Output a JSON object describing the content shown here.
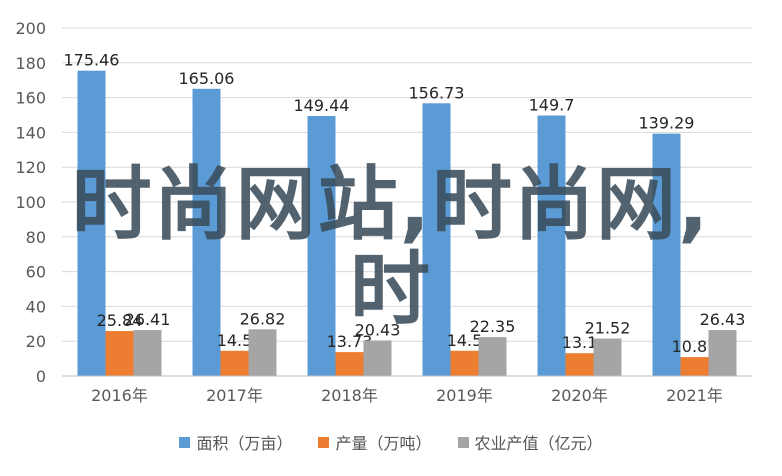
{
  "chart_data": {
    "type": "bar",
    "categories": [
      "2016年",
      "2017年",
      "2018年",
      "2019年",
      "2020年",
      "2021年"
    ],
    "ylim": [
      0,
      200
    ],
    "yticks": [
      0,
      20,
      40,
      60,
      80,
      100,
      120,
      140,
      160,
      180,
      200
    ],
    "grid": true,
    "legend_position": "bottom",
    "series": [
      {
        "name": "面积（万亩）",
        "color": "#5b9bd5",
        "values": [
          175.46,
          165.06,
          149.44,
          156.73,
          149.7,
          139.29
        ],
        "labels": [
          "175.46",
          "165.06",
          "149.44",
          "156.73",
          "149.7",
          "139.29"
        ]
      },
      {
        "name": "产量（万吨）",
        "color": "#ed7d31",
        "values": [
          25.84,
          14.5,
          13.73,
          14.5,
          13.1,
          10.87
        ],
        "labels": [
          "25.84",
          "14.5",
          "13.73",
          "14.5",
          "13.1",
          "10.87"
        ]
      },
      {
        "name": "农业产值（亿元）",
        "color": "#a5a5a5",
        "values": [
          26.41,
          26.82,
          20.43,
          22.35,
          21.52,
          26.43
        ],
        "labels": [
          "26.41",
          "26.82",
          "20.43",
          "22.35",
          "21.52",
          "26.43"
        ]
      }
    ]
  },
  "watermark": {
    "line1": "时尚网站,时尚网,",
    "line2": "时"
  }
}
